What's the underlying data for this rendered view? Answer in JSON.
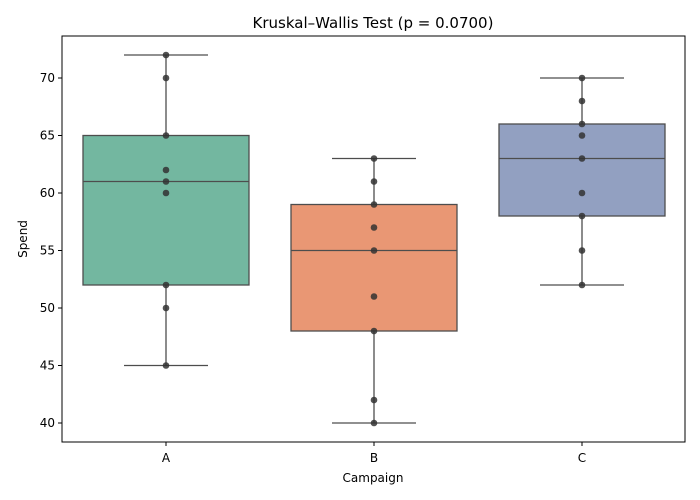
{
  "chart_data": {
    "type": "boxplot",
    "title": "Kruskal–Wallis Test (p = 0.0700)",
    "xlabel": "Campaign",
    "ylabel": "Spend",
    "categories": [
      "A",
      "B",
      "C"
    ],
    "ylim": [
      38.4,
      73.2
    ],
    "yticks": [
      40,
      45,
      50,
      55,
      60,
      65,
      70
    ],
    "grid": false,
    "legend": null,
    "series": [
      {
        "name": "A",
        "color": "#73b7a0",
        "points": [
          45,
          50,
          52,
          60,
          61,
          62,
          65,
          70,
          72
        ],
        "whisker_low": 45,
        "q1": 52,
        "median": 61,
        "q3": 65,
        "whisker_high": 72
      },
      {
        "name": "B",
        "color": "#e99774",
        "points": [
          40,
          42,
          48,
          51,
          55,
          57,
          59,
          61,
          63
        ],
        "whisker_low": 40,
        "q1": 48,
        "median": 55,
        "q3": 59,
        "whisker_high": 63
      },
      {
        "name": "C",
        "color": "#92a0c1",
        "points": [
          52,
          55,
          58,
          60,
          63,
          65,
          66,
          68,
          70
        ],
        "whisker_low": 52,
        "q1": 58,
        "median": 63,
        "q3": 66,
        "whisker_high": 70
      }
    ]
  }
}
